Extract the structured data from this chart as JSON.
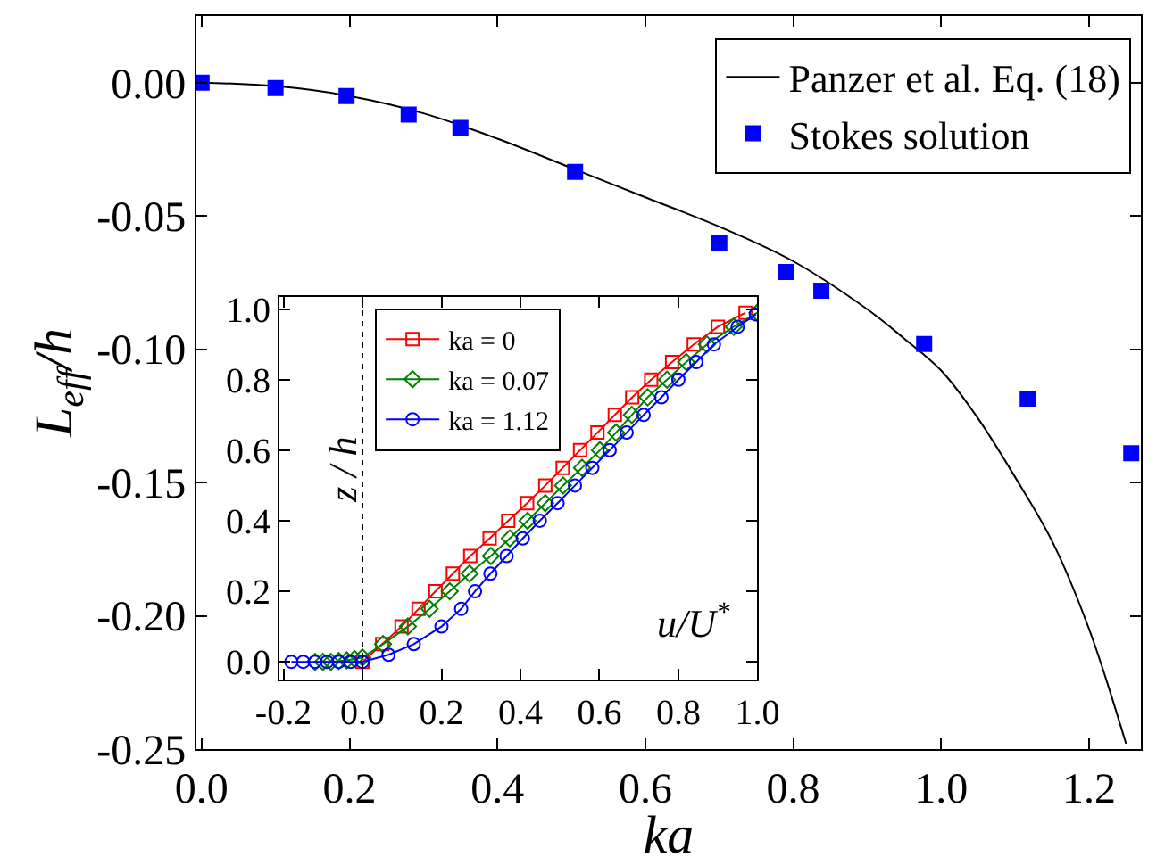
{
  "chart_data": [
    {
      "type": "line",
      "xlabel": "ka",
      "ylabel": "L$_{eff}$/h",
      "xlim": [
        -0.007,
        1.27
      ],
      "ylim": [
        -0.25,
        0.025
      ],
      "xticks": [
        {
          "value": 0,
          "label": "0.0"
        },
        {
          "value": 0.2,
          "label": "0.2"
        },
        {
          "value": 0.4,
          "label": "0.4"
        },
        {
          "value": 0.6,
          "label": "0.6"
        },
        {
          "value": 0.8,
          "label": "0.8"
        },
        {
          "value": 1.0,
          "label": "1.0"
        },
        {
          "value": 1.2,
          "label": "1.2"
        }
      ],
      "yticks": [
        {
          "value": 0,
          "label": "0.00"
        },
        {
          "value": -0.05,
          "label": "-0.05"
        },
        {
          "value": -0.1,
          "label": "-0.10"
        },
        {
          "value": -0.15,
          "label": "-0.15"
        },
        {
          "value": -0.2,
          "label": "-0.20"
        },
        {
          "value": -0.25,
          "label": "-0.25"
        }
      ],
      "legend": "top right",
      "series": [
        {
          "name": "Panzer et al. Eq. (18)",
          "type": "line",
          "color": "#000000",
          "marker": "none",
          "x": [
            0,
            0.1,
            0.2,
            0.3,
            0.4,
            0.5,
            0.6,
            0.7,
            0.8,
            0.9,
            0.95,
            1.0,
            1.05,
            1.1,
            1.15,
            1.2,
            1.25
          ],
          "values": [
            0,
            -0.0013,
            -0.005,
            -0.0115,
            -0.021,
            -0.032,
            -0.043,
            -0.054,
            -0.067,
            -0.085,
            -0.096,
            -0.108,
            -0.126,
            -0.148,
            -0.172,
            -0.205,
            -0.248
          ]
        },
        {
          "name": "Stokes solution",
          "type": "scatter",
          "color": "#0000ff",
          "marker": "square",
          "x": [
            0.0,
            0.1,
            0.196,
            0.28,
            0.35,
            0.505,
            0.7,
            0.79,
            0.838,
            0.977,
            1.117,
            1.257
          ],
          "values": [
            0,
            -0.002,
            -0.005,
            -0.012,
            -0.017,
            -0.0335,
            -0.06,
            -0.071,
            -0.078,
            -0.098,
            -0.1185,
            -0.139
          ]
        }
      ]
    },
    {
      "type": "line",
      "xlabel": "u/U$^{*}$",
      "ylabel": "z / h",
      "xlim": [
        -0.21,
        1.0
      ],
      "ylim": [
        -0.05,
        1.035
      ],
      "xticks": [
        {
          "value": -0.2,
          "label": "-0.2"
        },
        {
          "value": 0,
          "label": "0.0"
        },
        {
          "value": 0.2,
          "label": "0.2"
        },
        {
          "value": 0.4,
          "label": "0.4"
        },
        {
          "value": 0.6,
          "label": "0.6"
        },
        {
          "value": 0.8,
          "label": "0.8"
        },
        {
          "value": 1.0,
          "label": "1.0"
        }
      ],
      "yticks": [
        {
          "value": 0,
          "label": "0.0"
        },
        {
          "value": 0.2,
          "label": "0.2"
        },
        {
          "value": 0.4,
          "label": "0.4"
        },
        {
          "value": 0.6,
          "label": "0.6"
        },
        {
          "value": 0.8,
          "label": "0.8"
        },
        {
          "value": 1.0,
          "label": "1.0"
        }
      ],
      "legend": "top left",
      "ref_lines": [
        {
          "axis": "x",
          "value": 0,
          "color": "#000000",
          "line_style": "dotted"
        }
      ],
      "series": [
        {
          "name": "ka = 0",
          "color": "#ff0000",
          "marker": "square",
          "x": [
            0,
            0.05,
            0.099,
            0.142,
            0.185,
            0.229,
            0.273,
            0.322,
            0.369,
            0.417,
            0.463,
            0.507,
            0.551,
            0.595,
            0.639,
            0.683,
            0.731,
            0.784,
            0.839,
            0.9,
            0.97
          ],
          "values": [
            0,
            0.05,
            0.1,
            0.15,
            0.2,
            0.25,
            0.3,
            0.35,
            0.4,
            0.45,
            0.5,
            0.55,
            0.6,
            0.65,
            0.7,
            0.75,
            0.8,
            0.85,
            0.9,
            0.95,
            0.99
          ]
        },
        {
          "name": "ka = 0.07",
          "color": "#008000",
          "marker": "diamond",
          "x": [
            -0.12,
            -0.1,
            -0.08,
            -0.06,
            -0.04,
            -0.02,
            0.0,
            0.052,
            0.115,
            0.17,
            0.221,
            0.271,
            0.325,
            0.373,
            0.418,
            0.463,
            0.508,
            0.556,
            0.601,
            0.642,
            0.682,
            0.722,
            0.771,
            0.82,
            0.872,
            0.94,
            1.0
          ],
          "values": [
            0,
            0,
            0,
            0.002,
            0.004,
            0.008,
            0.012,
            0.05,
            0.1,
            0.15,
            0.2,
            0.25,
            0.3,
            0.35,
            0.4,
            0.45,
            0.5,
            0.55,
            0.6,
            0.65,
            0.7,
            0.75,
            0.8,
            0.85,
            0.9,
            0.95,
            0.99
          ]
        },
        {
          "name": "ka = 1.12",
          "color": "#0000ff",
          "marker": "circle",
          "x": [
            -0.18,
            -0.15,
            -0.12,
            -0.09,
            -0.06,
            -0.03,
            0.0,
            0.066,
            0.13,
            0.2,
            0.25,
            0.285,
            0.324,
            0.365,
            0.406,
            0.449,
            0.494,
            0.538,
            0.582,
            0.626,
            0.669,
            0.712,
            0.757,
            0.8,
            0.845,
            0.89,
            0.95,
            0.996
          ],
          "values": [
            0,
            0,
            0,
            0,
            0,
            0,
            0,
            0.02,
            0.05,
            0.1,
            0.15,
            0.2,
            0.25,
            0.3,
            0.35,
            0.4,
            0.45,
            0.5,
            0.55,
            0.6,
            0.65,
            0.7,
            0.75,
            0.8,
            0.85,
            0.9,
            0.95,
            0.985
          ]
        }
      ]
    }
  ]
}
